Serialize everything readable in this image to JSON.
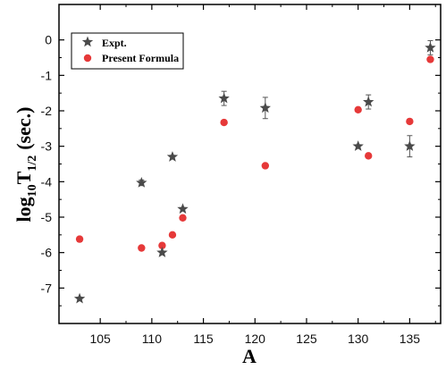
{
  "chart_data": {
    "type": "scatter",
    "xlabel": "A",
    "ylabel_main": "log",
    "ylabel_sub1": "10",
    "ylabel_T": "T",
    "ylabel_sub2": "1/2",
    "ylabel_tail": "(sec.)",
    "xlim": [
      101,
      138
    ],
    "ylim": [
      -8,
      1
    ],
    "xticks": [
      105,
      110,
      115,
      120,
      125,
      130,
      135
    ],
    "yticks": [
      0,
      -1,
      -2,
      -3,
      -4,
      -5,
      -6,
      -7
    ],
    "legend_position": "top-left",
    "series": [
      {
        "name": "Expt.",
        "marker": "star",
        "color": "#4a4a4a",
        "points": [
          {
            "x": 103,
            "y": -7.3,
            "err": 0
          },
          {
            "x": 109,
            "y": -4.03,
            "err": 0.08
          },
          {
            "x": 111,
            "y": -6.0,
            "err": 0
          },
          {
            "x": 112,
            "y": -3.3,
            "err": 0
          },
          {
            "x": 113,
            "y": -4.77,
            "err": 0
          },
          {
            "x": 117,
            "y": -1.65,
            "err": 0.2
          },
          {
            "x": 121,
            "y": -1.92,
            "err": 0.3
          },
          {
            "x": 130,
            "y": -3.0,
            "err": 0
          },
          {
            "x": 131,
            "y": -1.75,
            "err": 0.2
          },
          {
            "x": 135,
            "y": -3.0,
            "err": 0.3
          },
          {
            "x": 137,
            "y": -0.22,
            "err": 0.2
          }
        ]
      },
      {
        "name": "Present Formula",
        "marker": "circle",
        "color": "#e63939",
        "points": [
          {
            "x": 103,
            "y": -5.62
          },
          {
            "x": 109,
            "y": -5.87
          },
          {
            "x": 111,
            "y": -5.8
          },
          {
            "x": 112,
            "y": -5.5
          },
          {
            "x": 113,
            "y": -5.02
          },
          {
            "x": 117,
            "y": -2.33
          },
          {
            "x": 121,
            "y": -3.55
          },
          {
            "x": 130,
            "y": -1.97
          },
          {
            "x": 131,
            "y": -3.27
          },
          {
            "x": 135,
            "y": -2.3
          },
          {
            "x": 137,
            "y": -0.55
          }
        ]
      }
    ]
  }
}
